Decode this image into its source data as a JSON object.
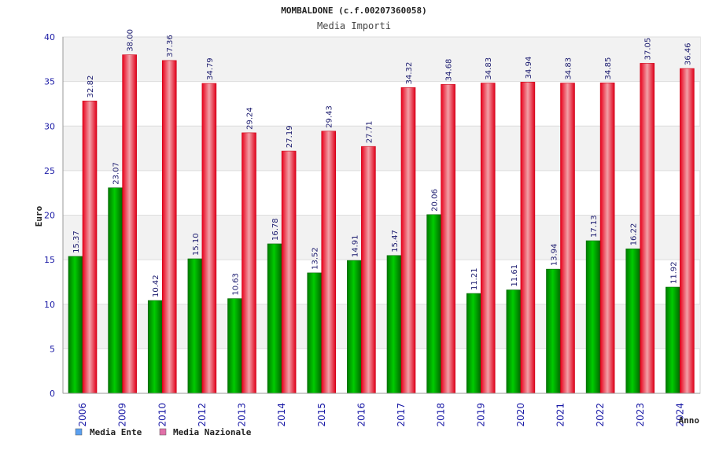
{
  "chart_data": {
    "type": "bar",
    "title": "MOMBALDONE (c.f.00207360058)",
    "subtitle": "Media Importi",
    "xlabel": "Anno",
    "ylabel": "Euro",
    "ylim": [
      0,
      40
    ],
    "yticks": [
      0,
      5,
      10,
      15,
      20,
      25,
      30,
      35,
      40
    ],
    "grid": true,
    "legend_position": "bottom-left",
    "categories": [
      "2006",
      "2009",
      "2010",
      "2012",
      "2013",
      "2014",
      "2015",
      "2016",
      "2017",
      "2018",
      "2019",
      "2020",
      "2021",
      "2022",
      "2023",
      "2024"
    ],
    "series": [
      {
        "name": "Media Ente",
        "color": "#00b000",
        "legend_color": "#5aa0f0",
        "values": [
          15.37,
          23.07,
          10.42,
          15.1,
          10.63,
          16.78,
          13.52,
          14.91,
          15.47,
          20.06,
          11.21,
          11.61,
          13.94,
          17.13,
          16.22,
          11.92
        ],
        "labels": [
          "15.37",
          "23.07",
          "10.42",
          "15.10",
          "10.63",
          "16.78",
          "13.52",
          "14.91",
          "15.47",
          "20.06",
          "11.21",
          "11.61",
          "13.94",
          "17.13",
          "16.22",
          "11.92"
        ]
      },
      {
        "name": "Media Nazionale",
        "color": "#ee1122",
        "legend_color": "#e070a8",
        "values": [
          32.82,
          38.0,
          37.36,
          34.79,
          29.24,
          27.19,
          29.43,
          27.71,
          34.32,
          34.68,
          34.83,
          34.94,
          34.83,
          34.85,
          37.05,
          36.46
        ],
        "labels": [
          "32.82",
          "38.00",
          "37.36",
          "34.79",
          "29.24",
          "27.19",
          "29.43",
          "27.71",
          "34.32",
          "34.68",
          "34.83",
          "34.94",
          "34.83",
          "34.85",
          "37.05",
          "36.46"
        ]
      }
    ]
  }
}
